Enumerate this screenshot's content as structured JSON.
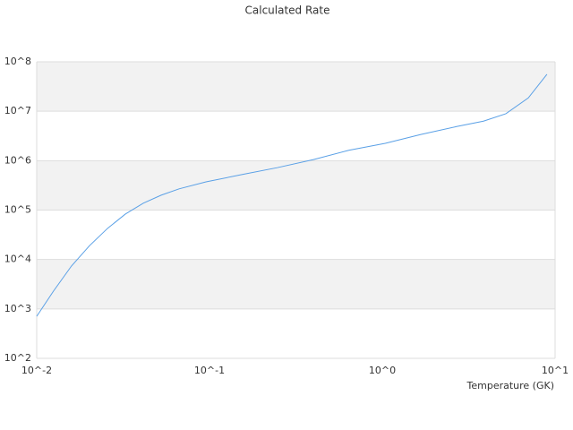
{
  "chart_data": {
    "type": "line",
    "title": "Calculated Rate",
    "x_label": "Temperature (GK)",
    "log_x": true,
    "log_y": true,
    "banded_grid": true,
    "band_color": "#f2f2f2",
    "grid_color": "#dddddd",
    "xlim": [
      0.01,
      10
    ],
    "xticks": [
      {
        "value": 0.01,
        "label": "10^-2"
      },
      {
        "value": 0.1,
        "label": "10^-1"
      },
      {
        "value": 1,
        "label": "10^0"
      },
      {
        "value": 10,
        "label": "10^1"
      }
    ],
    "ylim": [
      100,
      100000000
    ],
    "yticks": [
      {
        "value": 100,
        "label": "10^2"
      },
      {
        "value": 1000,
        "label": "10^3"
      },
      {
        "value": 10000,
        "label": "10^4"
      },
      {
        "value": 100000,
        "label": "10^5"
      },
      {
        "value": 1000000,
        "label": "10^6"
      },
      {
        "value": 10000000,
        "label": "10^7"
      },
      {
        "value": 100000000,
        "label": "10^8"
      }
    ],
    "x": [
      0.01,
      0.0125,
      0.0159,
      0.0202,
      0.0257,
      0.0326,
      0.0414,
      0.0525,
      0.0667,
      0.0955,
      0.155,
      0.248,
      0.4,
      0.64,
      1.04,
      1.67,
      2.69,
      3.85,
      5.19,
      7.0,
      8.97
    ],
    "series": [
      {
        "color": "#5aa0e6",
        "values": [
          708,
          2290,
          7400,
          19000,
          42600,
          83000,
          138000,
          200000,
          269000,
          372000,
          525000,
          724000,
          1050000,
          1620000,
          2240000,
          3390000,
          4900000,
          6300000,
          8900000,
          18600000,
          56000000
        ]
      }
    ]
  }
}
